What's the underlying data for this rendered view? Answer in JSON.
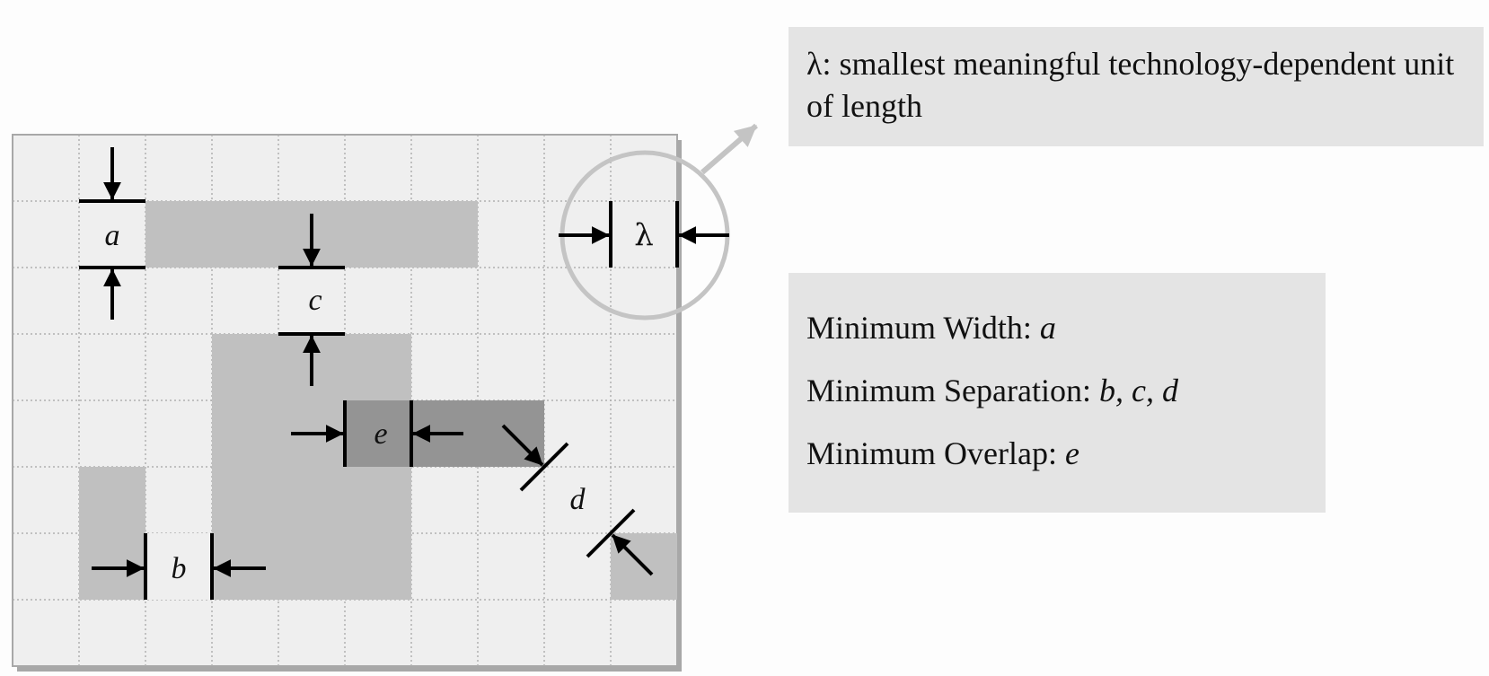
{
  "definition": {
    "symbol": "λ",
    "text": ": smallest meaningful technology-dependent unit of length"
  },
  "labels": {
    "a": "a",
    "b": "b",
    "c": "c",
    "d": "d",
    "e": "e",
    "lambda": "λ"
  },
  "rules": [
    {
      "text": "Minimum Width: ",
      "vars": "a"
    },
    {
      "text": "Minimum Separation: ",
      "vars": "b, c, d"
    },
    {
      "text": "Minimum Overlap: ",
      "vars": "e"
    }
  ],
  "colors": {
    "grid_background": "#efefef",
    "grid_lines": "#b0b0b0",
    "layer_light": "#c0c0c0",
    "layer_dark": "#949494",
    "callout": "#c4c4c4",
    "text_box": "#e4e4e4",
    "dimension_marks": "#000000"
  }
}
